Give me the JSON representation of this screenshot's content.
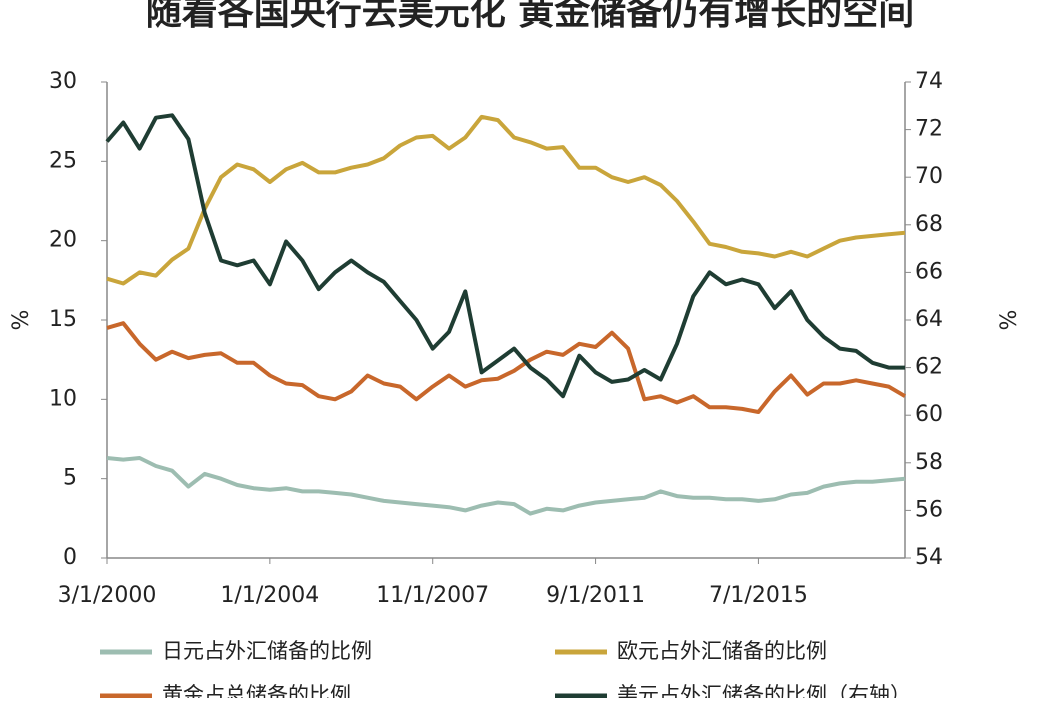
{
  "chart_data": {
    "type": "line",
    "title": "随着各国央行去美元化 黄金储备仍有增长的空间",
    "y_label": "%",
    "y2_label": "%",
    "categories": [
      "3/1/2000",
      null,
      null,
      null,
      null,
      null,
      null,
      null,
      null,
      null,
      "1/1/2004",
      null,
      null,
      null,
      null,
      null,
      null,
      null,
      null,
      null,
      "11/1/2007",
      null,
      null,
      null,
      null,
      null,
      null,
      null,
      null,
      null,
      "9/1/2011",
      null,
      null,
      null,
      null,
      null,
      null,
      null,
      null,
      null,
      "7/1/2015",
      null,
      null,
      null,
      null,
      null,
      null,
      null,
      null,
      null
    ],
    "ylim": [
      0,
      30
    ],
    "yticks": [
      0,
      5,
      10,
      15,
      20,
      25,
      30
    ],
    "y2lim": [
      54,
      74
    ],
    "y2ticks": [
      54,
      56,
      58,
      60,
      62,
      64,
      66,
      68,
      70,
      72,
      74
    ],
    "series": [
      {
        "name": "日元占外汇储备的比例",
        "color": "#9dbdb1",
        "values": [
          6.3,
          6.2,
          6.3,
          5.8,
          5.5,
          4.5,
          5.3,
          5.0,
          4.6,
          4.4,
          4.3,
          4.4,
          4.2,
          4.2,
          4.1,
          4.0,
          3.8,
          3.6,
          3.5,
          3.4,
          3.3,
          3.2,
          3.0,
          3.3,
          3.5,
          3.4,
          2.8,
          3.1,
          3.0,
          3.3,
          3.5,
          3.6,
          3.7,
          3.8,
          4.2,
          3.9,
          3.8,
          3.8,
          3.7,
          3.7,
          3.6,
          3.7,
          4.0,
          4.1,
          4.5,
          4.7,
          4.8,
          4.8,
          4.9,
          5.0
        ]
      },
      {
        "name": "欧元占外汇储备的比例",
        "color": "#c9a53b",
        "values": [
          17.6,
          17.3,
          18.0,
          17.8,
          18.8,
          19.5,
          22.0,
          24.0,
          24.8,
          24.5,
          23.7,
          24.5,
          24.9,
          24.3,
          24.3,
          24.6,
          24.8,
          25.2,
          26.0,
          26.5,
          26.6,
          25.8,
          26.5,
          27.8,
          27.6,
          26.5,
          26.2,
          25.8,
          25.9,
          24.6,
          24.6,
          24.0,
          23.7,
          24.0,
          23.5,
          22.5,
          21.2,
          19.8,
          19.6,
          19.3,
          19.2,
          19.0,
          19.3,
          19.0,
          19.5,
          20.0,
          20.2,
          20.3,
          20.4,
          20.5
        ]
      },
      {
        "name": "黄金占总储备的比例",
        "color": "#c8672b",
        "values": [
          14.5,
          14.8,
          13.5,
          12.5,
          13.0,
          12.6,
          12.8,
          12.9,
          12.3,
          12.3,
          11.5,
          11.0,
          10.9,
          10.2,
          10.0,
          10.5,
          11.5,
          11.0,
          10.8,
          10.0,
          10.8,
          11.5,
          10.8,
          11.2,
          11.3,
          11.8,
          12.5,
          13.0,
          12.8,
          13.5,
          13.3,
          14.2,
          13.2,
          10.0,
          10.2,
          9.8,
          10.2,
          9.5,
          9.5,
          9.4,
          9.2,
          10.5,
          11.5,
          10.3,
          11.0,
          11.0,
          11.2,
          11.0,
          10.8,
          10.2
        ]
      },
      {
        "name": "美元占外汇储备的比例（右轴）",
        "color": "#1f3d33",
        "axis": "y2",
        "values": [
          71.5,
          72.3,
          71.2,
          72.5,
          72.6,
          71.6,
          68.5,
          66.5,
          66.3,
          66.5,
          65.5,
          67.3,
          66.5,
          65.3,
          66.0,
          66.5,
          66.0,
          65.6,
          64.8,
          64.0,
          62.8,
          63.5,
          65.2,
          61.8,
          62.3,
          62.8,
          62.0,
          61.5,
          60.8,
          62.5,
          61.8,
          61.4,
          61.5,
          61.9,
          61.5,
          63.0,
          65.0,
          66.0,
          65.5,
          65.7,
          65.5,
          64.5,
          65.2,
          64.0,
          63.3,
          62.8,
          62.7,
          62.2,
          62.0,
          62.0
        ]
      }
    ]
  }
}
